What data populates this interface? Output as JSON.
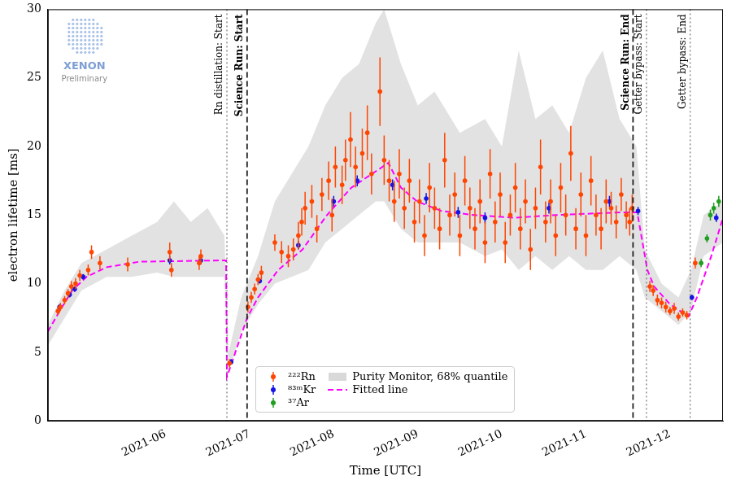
{
  "chart_data": {
    "type": "scatter",
    "x_label": "Time [UTC]",
    "y_label": "electron lifetime [ms]",
    "logo_text": "XENON",
    "logo_subtext": "Preliminary",
    "xlim": [
      4.6,
      12.63
    ],
    "xticks": [
      {
        "value": 6,
        "label": "2021-06"
      },
      {
        "value": 7,
        "label": "2021-07"
      },
      {
        "value": 8,
        "label": "2021-08"
      },
      {
        "value": 9,
        "label": "2021-09"
      },
      {
        "value": 10,
        "label": "2021-10"
      },
      {
        "value": 11,
        "label": "2021-11"
      },
      {
        "value": 12,
        "label": "2021-12"
      }
    ],
    "ylim": [
      0,
      30
    ],
    "yticks": [
      0,
      5,
      10,
      15,
      20,
      25,
      30
    ],
    "grid": false,
    "legend": "lower center",
    "series": [
      {
        "name": "²²²Rn",
        "type": "scatter",
        "color": "#ff4500",
        "marker": "circle",
        "x": [
          4.72,
          4.75,
          4.8,
          4.84,
          4.88,
          4.93,
          4.98,
          5.08,
          5.12,
          5.22,
          5.55,
          6.05,
          6.07,
          6.4,
          6.42,
          6.76,
          6.98,
          7.02,
          7.06,
          7.1,
          7.14,
          7.3,
          7.38,
          7.46,
          7.52,
          7.58,
          7.62,
          7.66,
          7.74,
          7.8,
          7.86,
          7.94,
          7.98,
          8.02,
          8.1,
          8.14,
          8.2,
          8.26,
          8.34,
          8.4,
          8.45,
          8.55,
          8.6,
          8.66,
          8.72,
          8.78,
          8.84,
          8.9,
          8.96,
          9.02,
          9.08,
          9.14,
          9.2,
          9.26,
          9.32,
          9.38,
          9.44,
          9.5,
          9.56,
          9.62,
          9.68,
          9.74,
          9.8,
          9.86,
          9.92,
          9.98,
          10.04,
          10.1,
          10.16,
          10.22,
          10.28,
          10.34,
          10.4,
          10.46,
          10.52,
          10.58,
          10.64,
          10.7,
          10.76,
          10.82,
          10.88,
          10.94,
          11.0,
          11.06,
          11.12,
          11.18,
          11.24,
          11.3,
          11.36,
          11.42,
          11.48,
          11.52,
          11.55,
          11.76,
          11.8,
          11.85,
          11.9,
          11.95,
          12.0,
          12.05,
          12.1,
          12.15,
          12.2,
          12.3
        ],
        "values": [
          8.0,
          8.3,
          8.8,
          9.3,
          9.8,
          10.0,
          10.6,
          11.0,
          12.3,
          11.5,
          11.4,
          12.3,
          11.0,
          11.5,
          12.0,
          4.2,
          8.3,
          9.0,
          9.6,
          10.3,
          10.8,
          13.0,
          12.3,
          12.0,
          12.5,
          13.5,
          14.5,
          15.5,
          16.0,
          14.0,
          16.5,
          17.5,
          15.0,
          18.5,
          17.2,
          19.0,
          20.5,
          18.5,
          19.5,
          21.0,
          18.0,
          24.0,
          19.0,
          17.5,
          16.0,
          18.0,
          15.5,
          17.5,
          14.5,
          16.0,
          13.5,
          17.0,
          15.5,
          14.0,
          19.0,
          15.0,
          16.5,
          13.5,
          17.5,
          15.5,
          14.0,
          16.0,
          13.0,
          18.0,
          14.5,
          16.5,
          13.0,
          15.0,
          17.0,
          14.0,
          16.0,
          12.5,
          15.5,
          18.5,
          14.5,
          16.0,
          13.5,
          17.0,
          15.0,
          19.5,
          14.0,
          16.5,
          13.5,
          17.5,
          15.0,
          14.0,
          16.0,
          15.5,
          14.5,
          16.5,
          15.0,
          14.5,
          15.5,
          9.8,
          9.5,
          8.8,
          8.6,
          8.3,
          8.0,
          8.2,
          7.6,
          7.9,
          7.7,
          11.5
        ],
        "errors": [
          0.3,
          0.3,
          0.3,
          0.3,
          0.4,
          0.4,
          0.4,
          0.4,
          0.5,
          0.5,
          0.5,
          0.7,
          0.5,
          0.5,
          0.5,
          0.3,
          0.4,
          0.4,
          0.4,
          0.4,
          0.5,
          0.6,
          0.8,
          0.8,
          0.8,
          1.0,
          1.0,
          1.2,
          1.2,
          1.0,
          1.2,
          1.4,
          1.2,
          1.5,
          1.4,
          1.5,
          2.0,
          1.5,
          1.8,
          2.0,
          1.5,
          2.5,
          1.8,
          1.5,
          1.5,
          1.8,
          1.5,
          1.6,
          1.5,
          1.6,
          1.5,
          1.8,
          1.5,
          1.5,
          2.0,
          1.5,
          1.6,
          1.5,
          1.8,
          1.5,
          1.5,
          1.6,
          1.5,
          1.8,
          1.5,
          1.6,
          1.5,
          1.5,
          1.8,
          1.5,
          1.6,
          1.5,
          1.5,
          2.0,
          1.5,
          1.6,
          1.5,
          1.8,
          1.5,
          2.0,
          1.5,
          1.6,
          1.5,
          1.8,
          1.5,
          1.5,
          1.6,
          1.2,
          1.2,
          1.2,
          1.0,
          1.0,
          1.0,
          0.4,
          0.4,
          0.4,
          0.4,
          0.4,
          0.3,
          0.4,
          0.3,
          0.3,
          0.3,
          0.4
        ]
      },
      {
        "name": "⁸³ᵐKr",
        "type": "scatter",
        "color": "#1414e6",
        "marker": "circle",
        "x": [
          4.74,
          4.86,
          4.92,
          5.02,
          6.05,
          6.42,
          6.78,
          7.12,
          7.58,
          8.0,
          8.28,
          8.7,
          9.1,
          9.48,
          9.8,
          10.56,
          11.28,
          11.62,
          12.26,
          12.55
        ],
        "values": [
          8.3,
          9.2,
          9.6,
          10.5,
          11.7,
          11.7,
          4.3,
          10.2,
          12.8,
          16.0,
          17.5,
          17.2,
          16.2,
          15.2,
          14.8,
          15.5,
          16.0,
          15.3,
          9.0,
          14.8
        ],
        "errors": [
          0.2,
          0.2,
          0.2,
          0.2,
          0.3,
          0.3,
          0.2,
          0.2,
          0.3,
          0.4,
          0.4,
          0.4,
          0.4,
          0.4,
          0.4,
          0.4,
          0.4,
          0.3,
          0.2,
          0.3
        ]
      },
      {
        "name": "³⁷Ar",
        "type": "scatter",
        "color": "#1f9e1f",
        "marker": "circle",
        "x": [
          12.37,
          12.44,
          12.48,
          12.52,
          12.58
        ],
        "values": [
          11.5,
          13.3,
          15.0,
          15.5,
          16.0
        ],
        "errors": [
          0.3,
          0.3,
          0.4,
          0.4,
          0.4
        ]
      },
      {
        "name": "Purity Monitor, 68% quantile",
        "type": "band",
        "color": "#cfcfcf",
        "x": [
          4.6,
          4.8,
          5.0,
          5.3,
          5.6,
          5.9,
          6.1,
          6.3,
          6.5,
          6.7,
          6.75,
          6.9,
          7.1,
          7.3,
          7.5,
          7.7,
          7.9,
          8.1,
          8.3,
          8.5,
          8.6,
          8.8,
          9.0,
          9.2,
          9.5,
          9.8,
          10.0,
          10.2,
          10.4,
          10.6,
          10.8,
          11.0,
          11.2,
          11.4,
          11.6,
          11.7,
          11.9,
          12.1,
          12.25,
          12.4,
          12.63
        ],
        "lower": [
          5.5,
          7.5,
          9.5,
          10.5,
          10.5,
          10.8,
          10.5,
          10.5,
          10.5,
          10.5,
          3.5,
          6.5,
          8.5,
          10,
          10.5,
          11,
          13,
          14,
          15,
          16,
          16,
          14,
          13,
          13,
          13,
          12,
          12.5,
          11,
          12,
          11,
          12,
          11,
          11,
          12,
          11,
          9,
          8,
          7,
          8,
          12,
          13
        ],
        "upper": [
          7,
          9.5,
          11.5,
          12.5,
          13.5,
          14.5,
          16,
          14.5,
          15.5,
          13.5,
          5,
          9,
          12,
          16,
          18,
          20,
          23,
          25,
          26,
          29,
          30,
          26,
          23,
          24,
          21,
          22,
          20,
          27,
          22,
          23,
          21,
          25,
          27,
          22,
          20,
          12.5,
          10,
          9,
          11,
          15,
          16
        ]
      },
      {
        "name": "Fitted line",
        "type": "line",
        "color": "#ff00ff",
        "line_style": "dashed",
        "x": [
          4.6,
          4.74,
          4.89,
          5.06,
          5.3,
          5.69,
          6.72,
          6.73,
          6.97,
          7.1,
          7.34,
          7.63,
          7.92,
          8.21,
          8.65,
          8.8,
          8.99,
          9.28,
          9.67,
          10.16,
          10.64,
          11.42,
          11.61,
          11.73,
          11.81,
          12.0,
          12.22,
          12.32,
          12.49,
          12.63
        ],
        "values": [
          6.5,
          8.0,
          9.5,
          10.5,
          11.2,
          11.6,
          11.7,
          3.2,
          7.5,
          9.0,
          11.0,
          12.5,
          15.0,
          17.0,
          18.8,
          17.0,
          16.0,
          15.3,
          15.0,
          14.8,
          15.0,
          15.2,
          15.2,
          11.0,
          9.8,
          8.5,
          7.6,
          9.0,
          12.0,
          14.8
        ]
      }
    ],
    "vlines": [
      {
        "x": 6.73,
        "label": "Rn distillation: Start",
        "line_style": "dotted"
      },
      {
        "x": 6.97,
        "label": "Science Run: Start",
        "line_style": "dashed"
      },
      {
        "x": 11.56,
        "label": "Science Run: End",
        "line_style": "dashed"
      },
      {
        "x": 11.72,
        "label": "Getter bypass: Start",
        "line_style": "dotted"
      },
      {
        "x": 12.24,
        "label": "Getter bypass: End",
        "line_style": "dotted"
      }
    ]
  }
}
